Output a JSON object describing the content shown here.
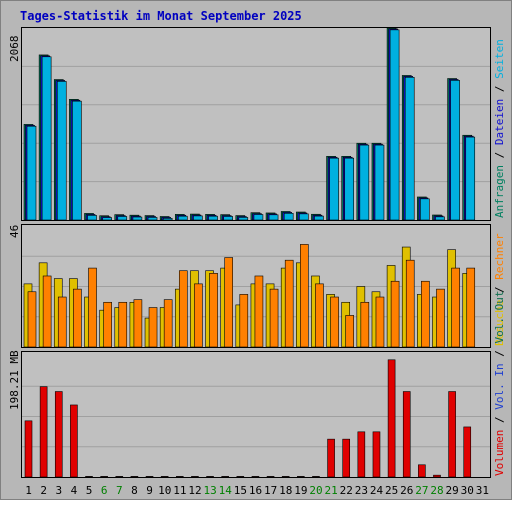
{
  "title": "Tages-Statistik im Monat September 2025",
  "colors": {
    "frame_bg": "#b7b7b7",
    "plot_bg": "#c0c0c0",
    "grid": "#a0a0a0",
    "title": "#0000c0",
    "anfragen": "#008060",
    "dateien": "#1010d0",
    "seiten": "#00b0e0",
    "besuche": "#e0c000",
    "rechner": "#ff8000",
    "volumen": "#e00000",
    "kb_out": "#107050",
    "kb_in": "#2040d0",
    "day_normal": "#000000",
    "day_weekend": "#008000"
  },
  "panels": {
    "top": {
      "max_label": "2068",
      "side_labels": [
        {
          "text": "Anfragen",
          "color": "#008060"
        },
        {
          "text": " / ",
          "color": "#000000"
        },
        {
          "text": "Dateien",
          "color": "#1010d0"
        },
        {
          "text": " / ",
          "color": "#000000"
        },
        {
          "text": "Seiten",
          "color": "#00b0e0"
        }
      ]
    },
    "middle": {
      "max_label": "46",
      "side_labels": [
        {
          "text": "Besuche",
          "color": "#e0c000"
        },
        {
          "text": " / ",
          "color": "#000000"
        },
        {
          "text": "Rechner",
          "color": "#ff8000"
        }
      ]
    },
    "bottom": {
      "max_label": "198.21 MB",
      "side_labels": [
        {
          "text": "Volumen",
          "color": "#e00000"
        },
        {
          "text": " / ",
          "color": "#000000"
        },
        {
          "text": "Vol. In",
          "color": "#2040d0"
        },
        {
          "text": " / ",
          "color": "#000000"
        },
        {
          "text": "Vol. Out",
          "color": "#107050"
        }
      ]
    }
  },
  "chart_data": {
    "type": "bar",
    "title": "Tages-Statistik im Monat September 2025",
    "categories": [
      "1",
      "2",
      "3",
      "4",
      "5",
      "6",
      "7",
      "8",
      "9",
      "10",
      "11",
      "12",
      "13",
      "14",
      "15",
      "16",
      "17",
      "18",
      "19",
      "20",
      "21",
      "22",
      "23",
      "24",
      "25",
      "26",
      "27",
      "28",
      "29",
      "30",
      "31"
    ],
    "weekend_days": [
      "6",
      "7",
      "13",
      "14",
      "20",
      "21",
      "27",
      "28"
    ],
    "top_ylim": [
      0,
      2068
    ],
    "middle_ylim": [
      0,
      46
    ],
    "bottom_ylim": [
      0,
      198.21
    ],
    "series": [
      {
        "name": "Anfragen",
        "panel": "top",
        "values": [
          1030,
          1778,
          1513,
          1300,
          71,
          46,
          58,
          52,
          48,
          38,
          61,
          64,
          61,
          58,
          48,
          79,
          76,
          92,
          86,
          62,
          686,
          686,
          827,
          827,
          2068,
          1557,
          248,
          54,
          1524,
          913,
          0
        ]
      },
      {
        "name": "Dateien",
        "panel": "top",
        "values": [
          1020,
          1768,
          1503,
          1290,
          60,
          36,
          48,
          42,
          38,
          28,
          51,
          54,
          51,
          48,
          38,
          69,
          66,
          82,
          76,
          52,
          676,
          676,
          817,
          817,
          2058,
          1547,
          238,
          44,
          1514,
          903,
          0
        ]
      },
      {
        "name": "Seiten",
        "panel": "top",
        "values": [
          1010,
          1758,
          1493,
          1280,
          50,
          26,
          38,
          32,
          28,
          18,
          41,
          44,
          41,
          38,
          28,
          59,
          56,
          72,
          66,
          42,
          666,
          666,
          807,
          807,
          2048,
          1537,
          228,
          34,
          1504,
          893,
          0
        ]
      },
      {
        "name": "Besuche",
        "panel": "middle",
        "values": [
          24,
          32,
          26,
          26,
          19,
          14,
          15,
          17,
          11,
          15,
          22,
          29,
          29,
          30,
          16,
          24,
          24,
          30,
          32,
          27,
          20,
          17,
          23,
          21,
          31,
          38,
          20,
          19,
          37,
          28,
          0
        ]
      },
      {
        "name": "Rechner",
        "panel": "middle",
        "values": [
          21,
          27,
          19,
          22,
          30,
          17,
          17,
          18,
          15,
          18,
          29,
          24,
          28,
          34,
          20,
          27,
          22,
          33,
          39,
          24,
          19,
          12,
          17,
          19,
          25,
          33,
          25,
          22,
          30,
          30,
          0
        ]
      },
      {
        "name": "Volumen",
        "panel": "bottom",
        "values": [
          92,
          148,
          140,
          118,
          1,
          1,
          1,
          1,
          1,
          1,
          1,
          1,
          1,
          1,
          1,
          1,
          1,
          1,
          1,
          1,
          62,
          62,
          74,
          74,
          192,
          140,
          20,
          3,
          140,
          82,
          0
        ]
      }
    ]
  }
}
